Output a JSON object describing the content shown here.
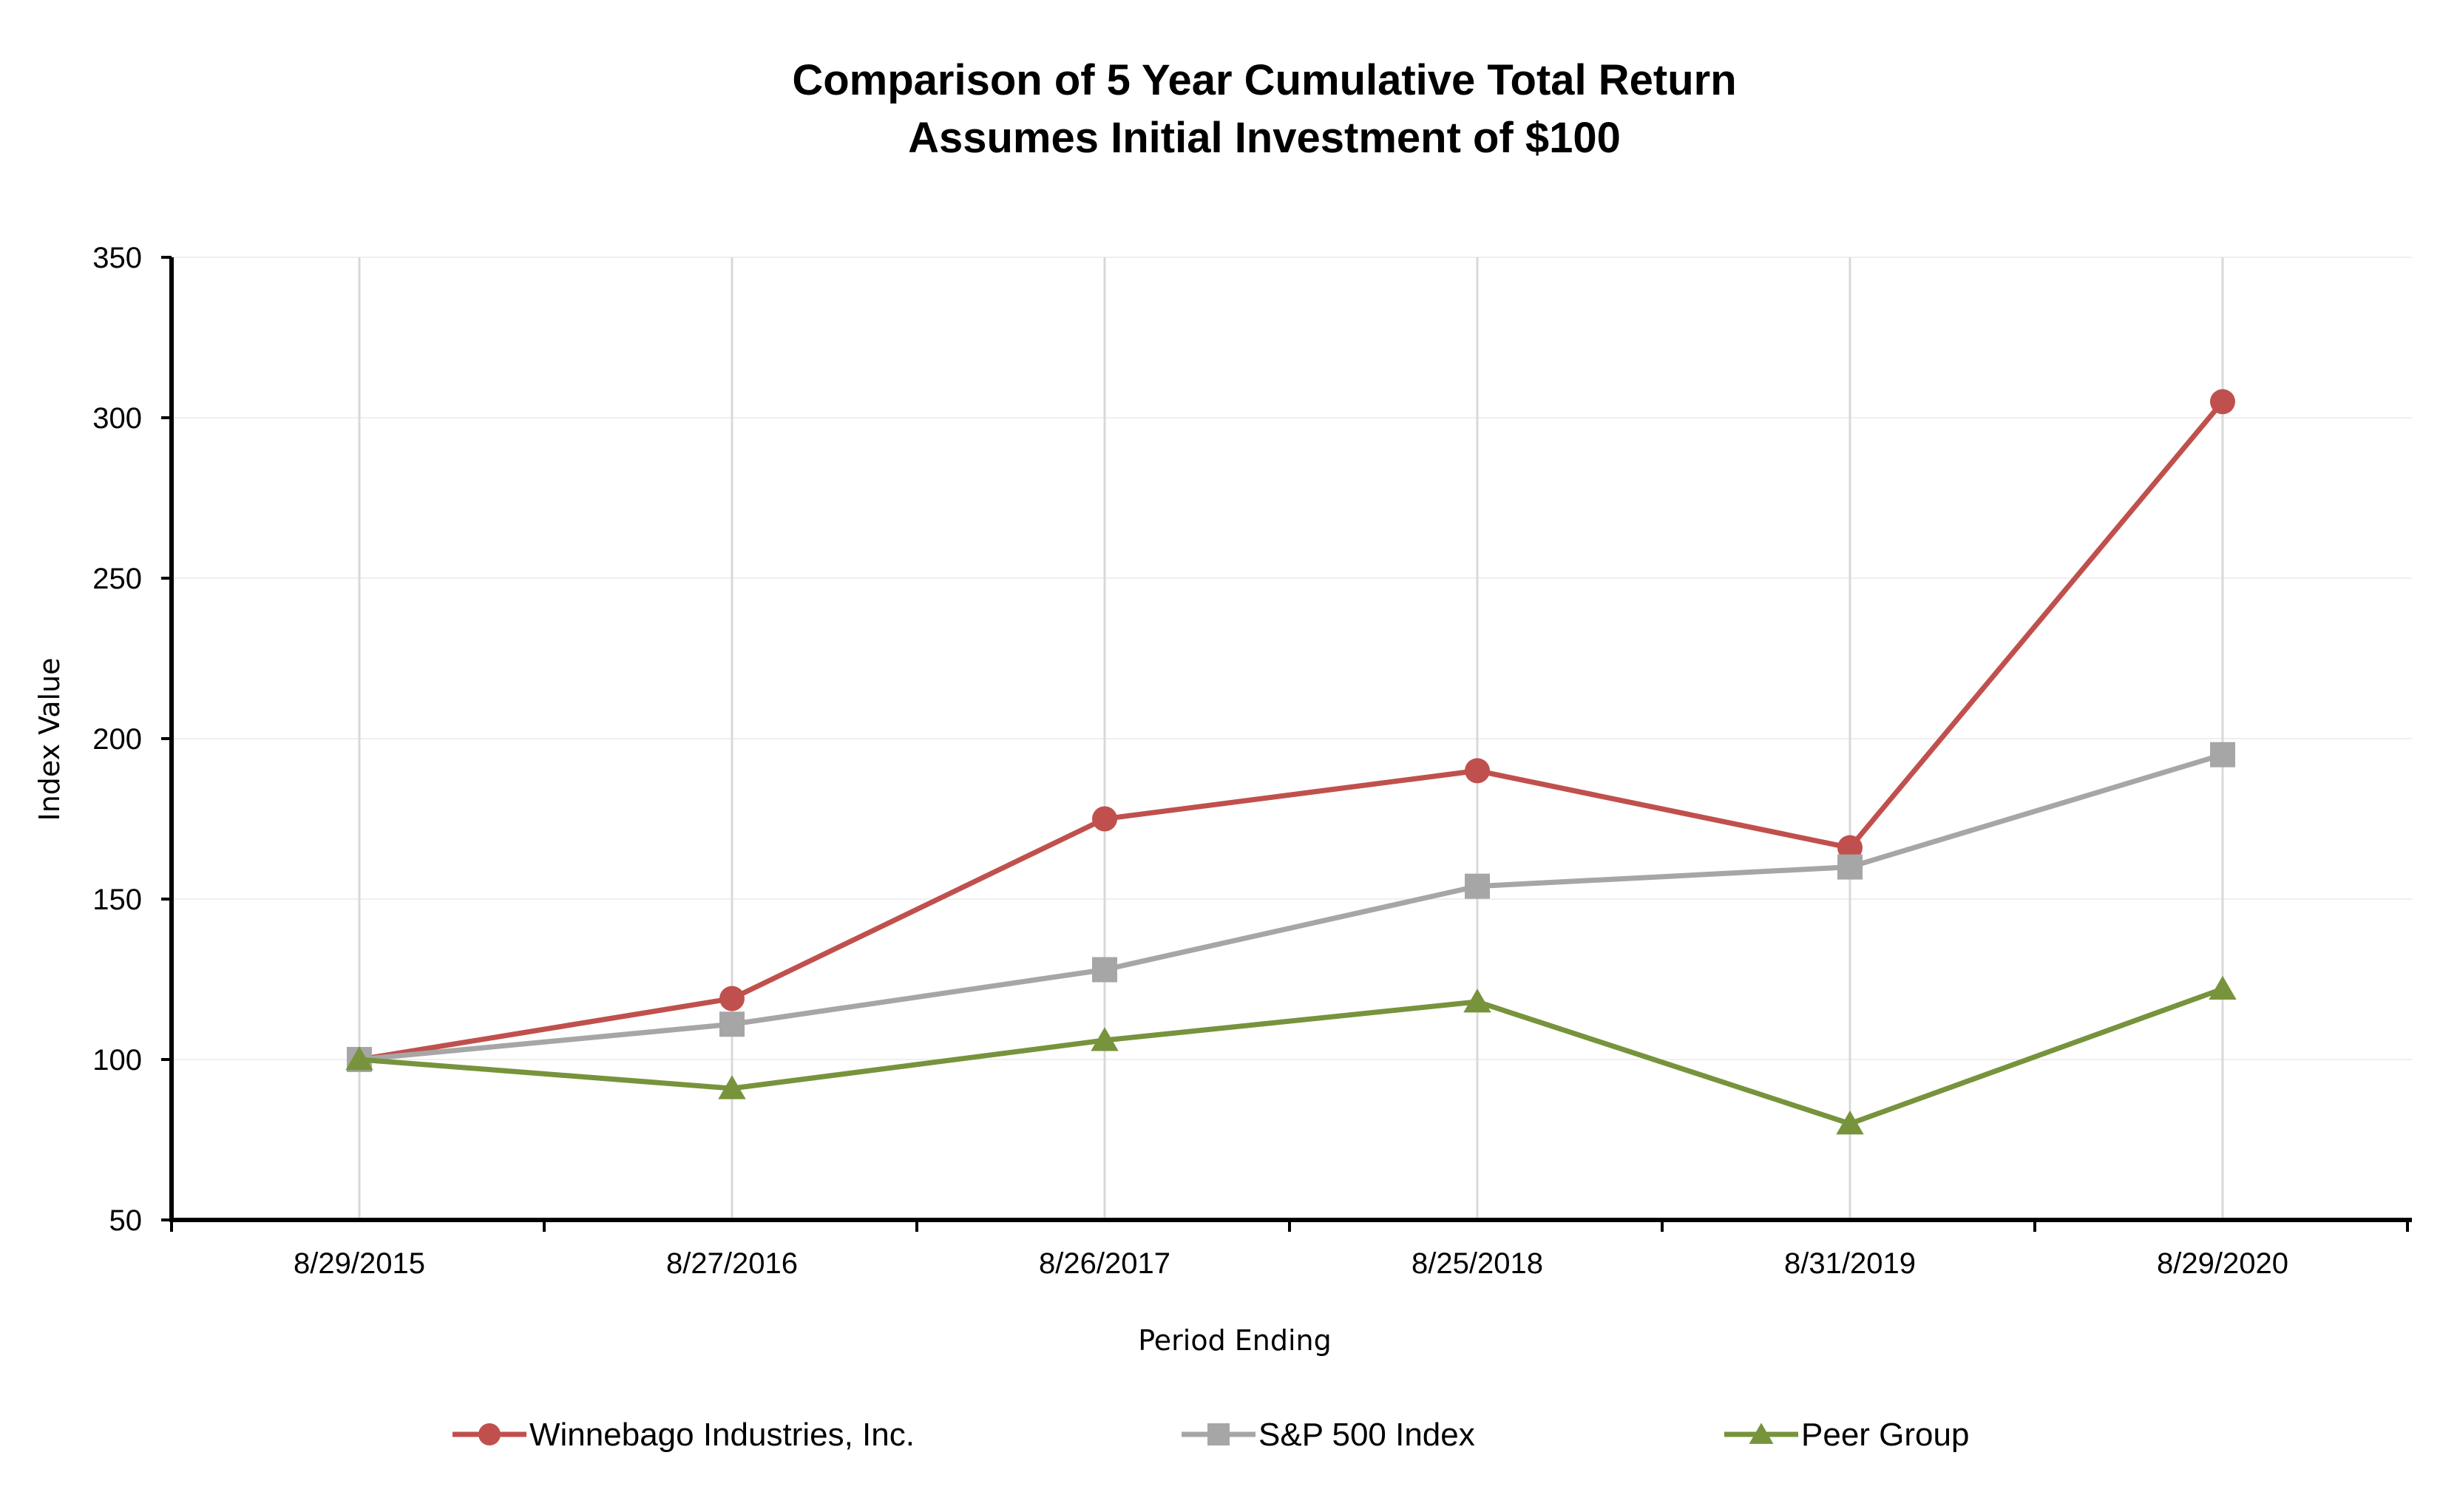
{
  "chart_data": {
    "type": "line",
    "title": "Comparison of 5 Year Cumulative Total Return",
    "subtitle": "Assumes Initial Investment of $100",
    "xlabel": "Period Ending",
    "ylabel": "Index Value",
    "categories": [
      "8/29/2015",
      "8/27/2016",
      "8/26/2017",
      "8/25/2018",
      "8/31/2019",
      "8/29/2020"
    ],
    "ylim": [
      50,
      350
    ],
    "yticks": [
      50,
      100,
      150,
      200,
      250,
      300,
      350
    ],
    "grid": true,
    "legend_position": "bottom",
    "series": [
      {
        "name": "Winnebago Industries, Inc.",
        "color": "#c0504d",
        "marker": "circle",
        "values": [
          100,
          119,
          175,
          190,
          166,
          305
        ]
      },
      {
        "name": "S&P 500 Index",
        "color": "#a6a6a6",
        "marker": "square",
        "values": [
          100,
          111,
          128,
          154,
          160,
          195
        ]
      },
      {
        "name": "Peer Group",
        "color": "#77933c",
        "marker": "triangle",
        "values": [
          100,
          91,
          106,
          118,
          80,
          122
        ]
      }
    ]
  }
}
